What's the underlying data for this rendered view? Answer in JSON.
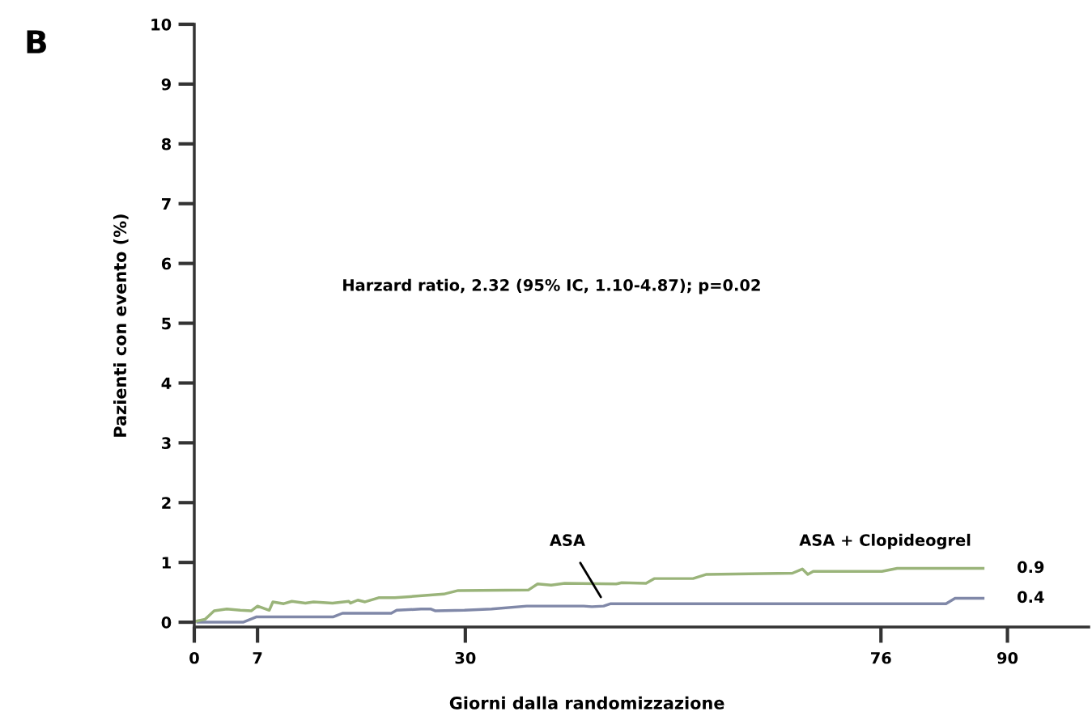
{
  "chart_data": {
    "type": "line",
    "title": "B",
    "xlabel": "Giorni dalla randomizzazione",
    "ylabel": "Pazienti con evento (%)",
    "xlim": [
      0,
      99
    ],
    "xticks": [
      0,
      7,
      30,
      76,
      90
    ],
    "ylim": [
      -0.08,
      10
    ],
    "yticks": [
      0,
      1,
      2,
      3,
      4,
      5,
      6,
      7,
      8,
      9,
      10
    ],
    "grid": false,
    "legend": false,
    "marker": "none",
    "line_style": "solid",
    "series": [
      {
        "name": "ASA",
        "color": "#8088a8",
        "x": [
          0.4,
          5.4,
          6.9,
          15.4,
          16.4,
          21.8,
          22.4,
          25.1,
          26.2,
          26.7,
          29.9,
          32.9,
          36.8,
          43.1,
          44.0,
          45.3,
          46.1,
          83.2,
          84.2,
          87.3
        ],
        "values": [
          0,
          0,
          0.09,
          0.09,
          0.15,
          0.15,
          0.2,
          0.22,
          0.22,
          0.19,
          0.2,
          0.22,
          0.27,
          0.27,
          0.26,
          0.27,
          0.31,
          0.31,
          0.4,
          0.4
        ]
      },
      {
        "name": "ASA + Clopideogrel",
        "color": "#9ab47a",
        "x": [
          0,
          1.2,
          2.2,
          3.6,
          5.1,
          6.3,
          7.0,
          8.3,
          8.7,
          9.9,
          10.8,
          12.3,
          13.2,
          15.3,
          17.1,
          17.3,
          18.1,
          18.9,
          20.4,
          22.2,
          27.6,
          29.2,
          37.0,
          38.0,
          39.5,
          41.0,
          46.7,
          47.3,
          50.0,
          50.9,
          55.2,
          56.7,
          66.2,
          67.3,
          67.9,
          68.5,
          76.1,
          77.8,
          87.3
        ],
        "values": [
          0.01,
          0.05,
          0.19,
          0.22,
          0.2,
          0.19,
          0.27,
          0.2,
          0.34,
          0.31,
          0.35,
          0.32,
          0.34,
          0.32,
          0.35,
          0.32,
          0.37,
          0.34,
          0.41,
          0.41,
          0.47,
          0.53,
          0.54,
          0.64,
          0.62,
          0.65,
          0.64,
          0.66,
          0.65,
          0.73,
          0.73,
          0.8,
          0.82,
          0.89,
          0.8,
          0.85,
          0.85,
          0.9,
          0.9
        ]
      }
    ],
    "annotations": [
      "Harzard ratio, 2.32 (95% IC, 1.10-4.87); p=0.02",
      {
        "text": "0.9",
        "x": 87.3,
        "y": 0.9
      },
      {
        "text": "0.4",
        "x": 87.3,
        "y": 0.4
      }
    ]
  }
}
